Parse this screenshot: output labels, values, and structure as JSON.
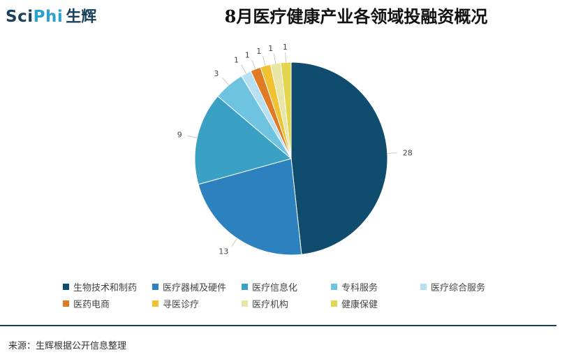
{
  "logo": {
    "brand_en_prefix": "Sci",
    "brand_en_suffix": "Phi",
    "brand_cn": "生辉"
  },
  "chart_data": {
    "type": "pie",
    "title": "8月医疗健康产业各领域投融资概况",
    "start_angle_deg": 0,
    "direction": "clockwise",
    "legend_position": "bottom",
    "slices": [
      {
        "label": "生物技术和制药",
        "value": 28,
        "color": "#0f4c6e"
      },
      {
        "label": "医疗器械及硬件",
        "value": 13,
        "color": "#2e81bf"
      },
      {
        "label": "医疗信息化",
        "value": 9,
        "color": "#3aa0c4"
      },
      {
        "label": "专科服务",
        "value": 3,
        "color": "#6ec4e0"
      },
      {
        "label": "医疗综合服务",
        "value": 1,
        "color": "#b7e1f3"
      },
      {
        "label": "医药电商",
        "value": 1,
        "color": "#e07b25"
      },
      {
        "label": "寻医诊疗",
        "value": 1,
        "color": "#f0c232"
      },
      {
        "label": "医疗机构",
        "value": 1,
        "color": "#e9e5a6"
      },
      {
        "label": "健康保健",
        "value": 1,
        "color": "#e4d54f"
      }
    ]
  },
  "source": "来源：生辉根据公开信息整理"
}
